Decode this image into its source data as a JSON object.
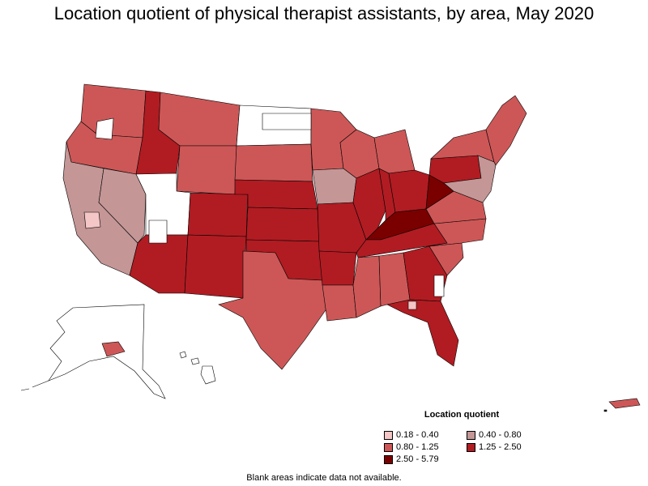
{
  "title": "Location quotient of physical therapist assistants, by area, May 2020",
  "legend": {
    "title": "Location quotient",
    "items": [
      {
        "label": "0.18 - 0.40",
        "color": "#f4c6c6"
      },
      {
        "label": "0.40 - 0.80",
        "color": "#c49696"
      },
      {
        "label": "0.80 - 1.25",
        "color": "#cd5757"
      },
      {
        "label": "1.25 - 2.50",
        "color": "#b01c22"
      },
      {
        "label": "2.50 - 5.79",
        "color": "#7a0000"
      }
    ]
  },
  "footnote": "Blank areas indicate data not available.",
  "colors": {
    "blank": "#ffffff",
    "outline": "#000000"
  }
}
